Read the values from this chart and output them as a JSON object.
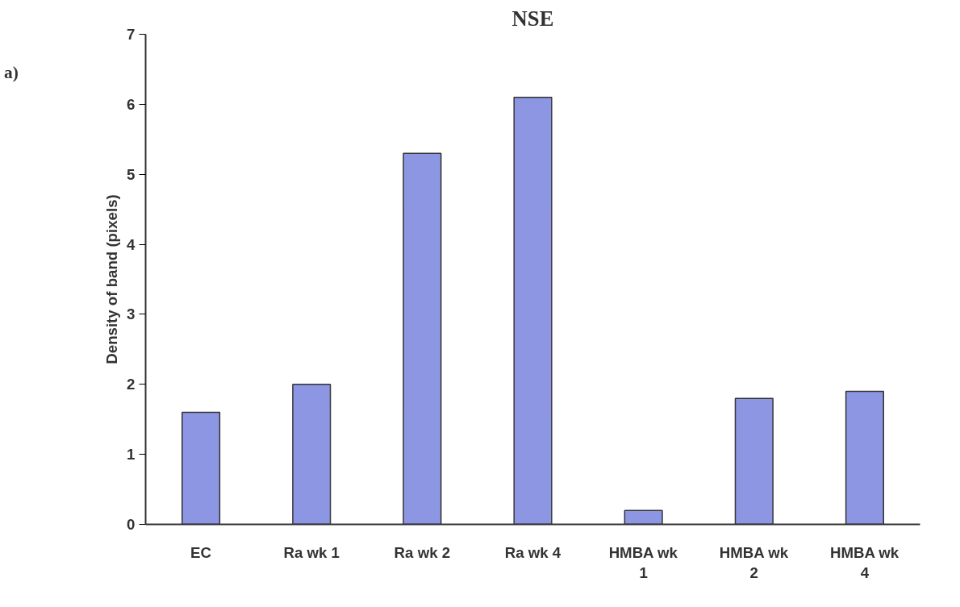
{
  "chart_data": {
    "type": "bar",
    "title": "NSE",
    "ylabel": "Density of band (pixels)",
    "annotations": [
      "a)"
    ],
    "categories": [
      "EC",
      "Ra wk 1",
      "Ra wk 2",
      "Ra wk 4",
      "HMBA wk 1",
      "HMBA wk 2",
      "HMBA wk 4"
    ],
    "values": [
      1.6,
      2.0,
      5.3,
      6.1,
      0.2,
      1.8,
      1.9
    ],
    "color": "#8c96e2",
    "ylim": [
      0,
      7
    ],
    "yticks": [
      0,
      1,
      2,
      3,
      4,
      5,
      6,
      7
    ],
    "grid": false
  }
}
